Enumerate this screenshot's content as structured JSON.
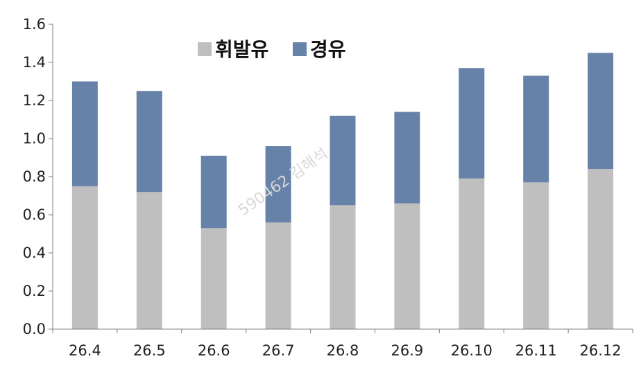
{
  "chart_data": {
    "type": "bar",
    "stacked": true,
    "categories": [
      "26.4",
      "26.5",
      "26.6",
      "26.7",
      "26.8",
      "26.9",
      "26.10",
      "26.11",
      "26.12"
    ],
    "series": [
      {
        "name": "휘발유",
        "color": "#bfbfbf",
        "values": [
          0.75,
          0.72,
          0.53,
          0.56,
          0.65,
          0.66,
          0.79,
          0.77,
          0.84
        ]
      },
      {
        "name": "경유",
        "color": "#6682a8",
        "values": [
          0.55,
          0.53,
          0.38,
          0.4,
          0.47,
          0.48,
          0.58,
          0.56,
          0.61
        ]
      }
    ],
    "ylim": [
      0,
      1.6
    ],
    "yticks": [
      "0.0",
      "0.2",
      "0.4",
      "0.6",
      "0.8",
      "1.0",
      "1.2",
      "1.4",
      "1.6"
    ],
    "ytick_values": [
      0,
      0.2,
      0.4,
      0.6,
      0.8,
      1.0,
      1.2,
      1.4,
      1.6
    ],
    "grid": false,
    "legend_position": "top-left",
    "watermark": "590462 김해석"
  }
}
